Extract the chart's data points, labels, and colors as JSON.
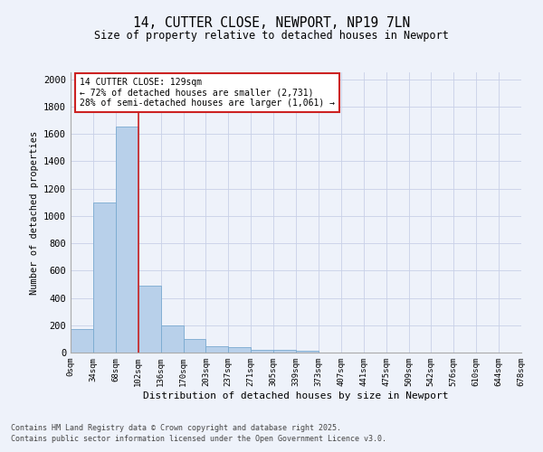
{
  "title1": "14, CUTTER CLOSE, NEWPORT, NP19 7LN",
  "title2": "Size of property relative to detached houses in Newport",
  "xlabel": "Distribution of detached houses by size in Newport",
  "ylabel": "Number of detached properties",
  "bar_values": [
    175,
    1100,
    1650,
    490,
    200,
    100,
    45,
    40,
    22,
    22,
    15,
    0,
    0,
    0,
    0,
    0,
    0,
    0,
    0,
    0
  ],
  "bin_labels": [
    "0sqm",
    "34sqm",
    "68sqm",
    "102sqm",
    "136sqm",
    "170sqm",
    "203sqm",
    "237sqm",
    "271sqm",
    "305sqm",
    "339sqm",
    "373sqm",
    "407sqm",
    "441sqm",
    "475sqm",
    "509sqm",
    "542sqm",
    "576sqm",
    "610sqm",
    "644sqm",
    "678sqm"
  ],
  "bar_color": "#b8d0ea",
  "bar_edge_color": "#7aaad0",
  "background_color": "#eef2fa",
  "grid_color": "#c8d0e8",
  "vline_x": 3.0,
  "vline_color": "#cc2222",
  "annotation_box_text": "14 CUTTER CLOSE: 129sqm\n← 72% of detached houses are smaller (2,731)\n28% of semi-detached houses are larger (1,061) →",
  "annotation_box_color": "#cc2222",
  "annotation_box_bg": "#ffffff",
  "ylim": [
    0,
    2050
  ],
  "yticks": [
    0,
    200,
    400,
    600,
    800,
    1000,
    1200,
    1400,
    1600,
    1800,
    2000
  ],
  "footer1": "Contains HM Land Registry data © Crown copyright and database right 2025.",
  "footer2": "Contains public sector information licensed under the Open Government Licence v3.0."
}
